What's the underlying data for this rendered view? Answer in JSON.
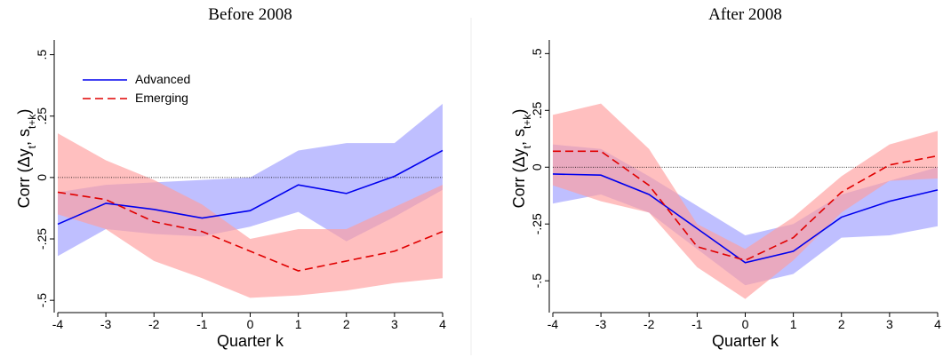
{
  "chart_data": [
    {
      "type": "line",
      "title": "Before 2008",
      "xlabel": "Quarter k",
      "ylabel_parts": [
        "Corr (Δy",
        "t",
        ", s",
        "t+k",
        ")"
      ],
      "x": [
        -4,
        -3,
        -2,
        -1,
        0,
        1,
        2,
        3,
        4
      ],
      "xlim": [
        -4,
        4
      ],
      "xticks": [
        -4,
        -3,
        -2,
        -1,
        0,
        1,
        2,
        3,
        4
      ],
      "ylim": [
        -0.55,
        0.56
      ],
      "yticks": [
        {
          "value": 0.5,
          "label": ".5"
        },
        {
          "value": 0.25,
          "label": ".25"
        },
        0,
        {
          "value": -0.25,
          "label": "-.25"
        },
        {
          "value": -0.5,
          "label": "-.5"
        }
      ],
      "hline": 0,
      "legend": "upper left",
      "series": [
        {
          "name": "Advanced",
          "color": "#0000ee",
          "band_color": "#9c9cff",
          "dash": false,
          "values": [
            -0.19,
            -0.105,
            -0.13,
            -0.165,
            -0.135,
            -0.03,
            -0.065,
            0.005,
            0.11
          ],
          "upper": [
            -0.06,
            -0.03,
            -0.02,
            -0.01,
            0.0,
            0.11,
            0.14,
            0.14,
            0.3
          ],
          "lower": [
            -0.32,
            -0.21,
            -0.23,
            -0.24,
            -0.2,
            -0.14,
            -0.26,
            -0.16,
            -0.05
          ]
        },
        {
          "name": "Emerging",
          "color": "#e00000",
          "band_color": "#ff9c9c",
          "dash": true,
          "values": [
            -0.06,
            -0.09,
            -0.18,
            -0.22,
            -0.3,
            -0.38,
            -0.34,
            -0.3,
            -0.22
          ],
          "upper": [
            0.18,
            0.07,
            -0.01,
            -0.11,
            -0.25,
            -0.21,
            -0.21,
            -0.12,
            -0.03
          ],
          "lower": [
            -0.15,
            -0.21,
            -0.34,
            -0.41,
            -0.49,
            -0.48,
            -0.46,
            -0.43,
            -0.41
          ]
        }
      ]
    },
    {
      "type": "line",
      "title": "After 2008",
      "xlabel": "Quarter k",
      "ylabel_parts": [
        "Corr (Δy",
        "t",
        ", s",
        "t+k",
        ")"
      ],
      "x": [
        -4,
        -3,
        -2,
        -1,
        0,
        1,
        2,
        3,
        4
      ],
      "xlim": [
        -4,
        4
      ],
      "xticks": [
        -4,
        -3,
        -2,
        -1,
        0,
        1,
        2,
        3,
        4
      ],
      "ylim": [
        -0.64,
        0.56
      ],
      "yticks": [
        {
          "value": 0.5,
          "label": ".5"
        },
        {
          "value": 0.25,
          "label": ".25"
        },
        0,
        {
          "value": -0.25,
          "label": "-.25"
        },
        {
          "value": -0.5,
          "label": "-.5"
        }
      ],
      "hline": 0,
      "series": [
        {
          "name": "Advanced",
          "color": "#0000ee",
          "band_color": "#9c9cff",
          "dash": false,
          "values": [
            -0.03,
            -0.035,
            -0.12,
            -0.27,
            -0.42,
            -0.37,
            -0.22,
            -0.15,
            -0.1
          ],
          "upper": [
            0.1,
            0.08,
            -0.04,
            -0.17,
            -0.3,
            -0.25,
            -0.12,
            -0.06,
            0.0
          ],
          "lower": [
            -0.16,
            -0.12,
            -0.2,
            -0.36,
            -0.52,
            -0.47,
            -0.31,
            -0.3,
            -0.26
          ]
        },
        {
          "name": "Emerging",
          "color": "#e00000",
          "band_color": "#ff9c9c",
          "dash": true,
          "values": [
            0.07,
            0.07,
            -0.08,
            -0.35,
            -0.41,
            -0.31,
            -0.11,
            0.01,
            0.05
          ],
          "upper": [
            0.23,
            0.28,
            0.08,
            -0.25,
            -0.36,
            -0.22,
            -0.04,
            0.1,
            0.16
          ],
          "lower": [
            -0.08,
            -0.15,
            -0.2,
            -0.44,
            -0.58,
            -0.41,
            -0.2,
            -0.06,
            -0.05
          ]
        }
      ]
    }
  ]
}
